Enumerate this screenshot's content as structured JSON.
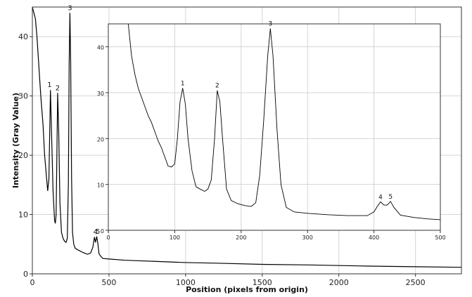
{
  "chart_data": [
    {
      "type": "line",
      "role": "main",
      "xlabel": "Position (pixels from origin)",
      "ylabel": "Intensity (Gray Value)",
      "xlim": [
        0,
        2800
      ],
      "ylim": [
        0,
        45
      ],
      "x_ticks": [
        0,
        500,
        1000,
        1500,
        2000,
        2500
      ],
      "y_ticks": [
        0,
        10,
        20,
        30,
        40
      ],
      "grid": true,
      "series": [
        {
          "x": [
            0,
            10,
            20,
            30,
            40,
            55,
            70,
            80,
            90,
            100,
            108,
            112,
            118,
            125,
            135,
            145,
            150,
            155,
            160,
            165,
            172,
            180,
            190,
            200,
            210,
            220,
            228,
            235,
            240,
            245,
            250,
            256,
            262,
            270,
            280,
            300,
            330,
            360,
            380,
            395,
            405,
            412,
            420,
            428,
            435,
            445,
            460,
            500,
            600,
            700,
            800,
            1000,
            1200,
            1500,
            1800,
            2000,
            2200,
            2500,
            2800
          ],
          "y": [
            45,
            44,
            43,
            40,
            36,
            30,
            25,
            20,
            17,
            14,
            16,
            22,
            31,
            24,
            14,
            9,
            8.5,
            10,
            20,
            30.5,
            24,
            12,
            7,
            6,
            5.5,
            5.3,
            6,
            15,
            35,
            44,
            36,
            16,
            7,
            5,
            4.3,
            4,
            3.6,
            3.3,
            3.5,
            4.5,
            6.2,
            5.3,
            6.3,
            5,
            3.4,
            3,
            2.6,
            2.5,
            2.3,
            2.2,
            2.1,
            1.9,
            1.8,
            1.6,
            1.5,
            1.4,
            1.3,
            1.2,
            1.1
          ]
        }
      ],
      "annotations": [
        {
          "text": "1",
          "x": 112,
          "y": 31
        },
        {
          "text": "2",
          "x": 165,
          "y": 30.5
        },
        {
          "text": "3",
          "x": 245,
          "y": 44
        },
        {
          "text": "4",
          "x": 412,
          "y": 6.2
        },
        {
          "text": "5",
          "x": 428,
          "y": 6.3
        }
      ]
    },
    {
      "type": "line",
      "role": "inset",
      "xlabel": "",
      "ylabel": "",
      "xlim": [
        0,
        500
      ],
      "ylim": [
        0,
        45
      ],
      "x_ticks": [
        0,
        100,
        200,
        300,
        400,
        500
      ],
      "y_ticks": [
        0,
        10,
        20,
        30,
        40
      ],
      "grid": true,
      "series": [
        {
          "x": [
            30,
            35,
            40,
            45,
            50,
            55,
            60,
            65,
            70,
            75,
            80,
            85,
            90,
            95,
            100,
            104,
            108,
            112,
            116,
            120,
            126,
            132,
            138,
            145,
            150,
            155,
            160,
            164,
            168,
            172,
            178,
            185,
            195,
            205,
            215,
            222,
            228,
            234,
            240,
            244,
            248,
            254,
            260,
            268,
            280,
            300,
            330,
            360,
            390,
            400,
            405,
            410,
            415,
            420,
            425,
            430,
            440,
            460,
            480,
            500
          ],
          "y": [
            45,
            38,
            34,
            31,
            29,
            27,
            25,
            23.5,
            21.5,
            19.5,
            18,
            16,
            14,
            13.8,
            14.5,
            20,
            28,
            31,
            27.5,
            20,
            13,
            9.5,
            9,
            8.5,
            9,
            11,
            20,
            30.5,
            28,
            20,
            9,
            6.5,
            5.8,
            5.4,
            5.2,
            6,
            12,
            24,
            38,
            44,
            38,
            22,
            10,
            5,
            4,
            3.7,
            3.4,
            3.2,
            3.2,
            4,
            5.2,
            6.2,
            5.5,
            5.5,
            6.3,
            5,
            3.3,
            2.8,
            2.5,
            2.3
          ]
        }
      ],
      "annotations": [
        {
          "text": "1",
          "x": 112,
          "y": 31
        },
        {
          "text": "2",
          "x": 164,
          "y": 30.5
        },
        {
          "text": "3",
          "x": 244,
          "y": 44
        },
        {
          "text": "4",
          "x": 410,
          "y": 6.2
        },
        {
          "text": "5",
          "x": 425,
          "y": 6.3
        }
      ]
    }
  ]
}
